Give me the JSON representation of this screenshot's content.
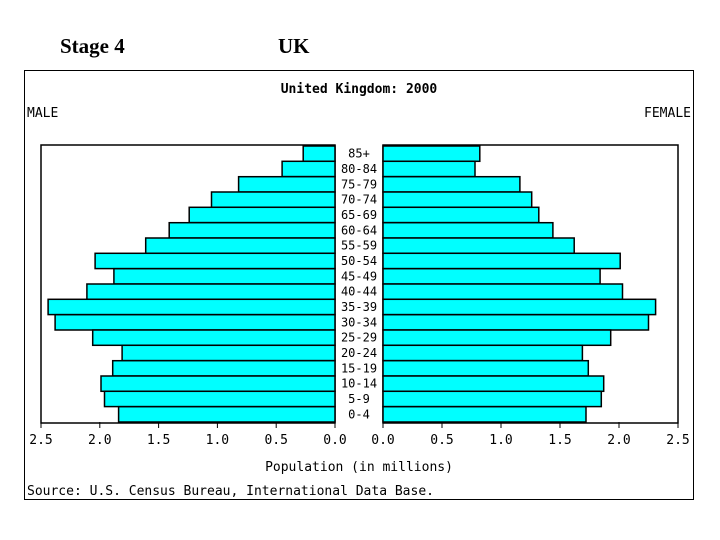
{
  "slide": {
    "stage_title": "Stage 4",
    "country_title": "UK"
  },
  "chart_data": {
    "type": "bar",
    "subtype": "population-pyramid",
    "title": "United Kingdom: 2000",
    "left_label": "MALE",
    "right_label": "FEMALE",
    "xlabel": "Population (in millions)",
    "source": "Source: U.S. Census Bureau, International Data Base.",
    "xlim": [
      0,
      2.5
    ],
    "x_ticks": [
      "2.5",
      "2.0",
      "1.5",
      "1.0",
      "0.5",
      "0.0",
      "0.0",
      "0.5",
      "1.0",
      "1.5",
      "2.0",
      "2.5"
    ],
    "bar_color": "#00ffff",
    "categories": [
      "85+",
      "80-84",
      "75-79",
      "70-74",
      "65-69",
      "60-64",
      "55-59",
      "50-54",
      "45-49",
      "40-44",
      "35-39",
      "30-34",
      "25-29",
      "20-24",
      "15-19",
      "10-14",
      "5-9",
      "0-4"
    ],
    "series": [
      {
        "name": "MALE",
        "values": [
          0.27,
          0.45,
          0.82,
          1.05,
          1.24,
          1.41,
          1.61,
          2.04,
          1.88,
          2.11,
          2.44,
          2.38,
          2.06,
          1.81,
          1.89,
          1.99,
          1.96,
          1.84
        ]
      },
      {
        "name": "FEMALE",
        "values": [
          0.82,
          0.78,
          1.16,
          1.26,
          1.32,
          1.44,
          1.62,
          2.01,
          1.84,
          2.03,
          2.31,
          2.25,
          1.93,
          1.69,
          1.74,
          1.87,
          1.85,
          1.72
        ]
      }
    ]
  }
}
